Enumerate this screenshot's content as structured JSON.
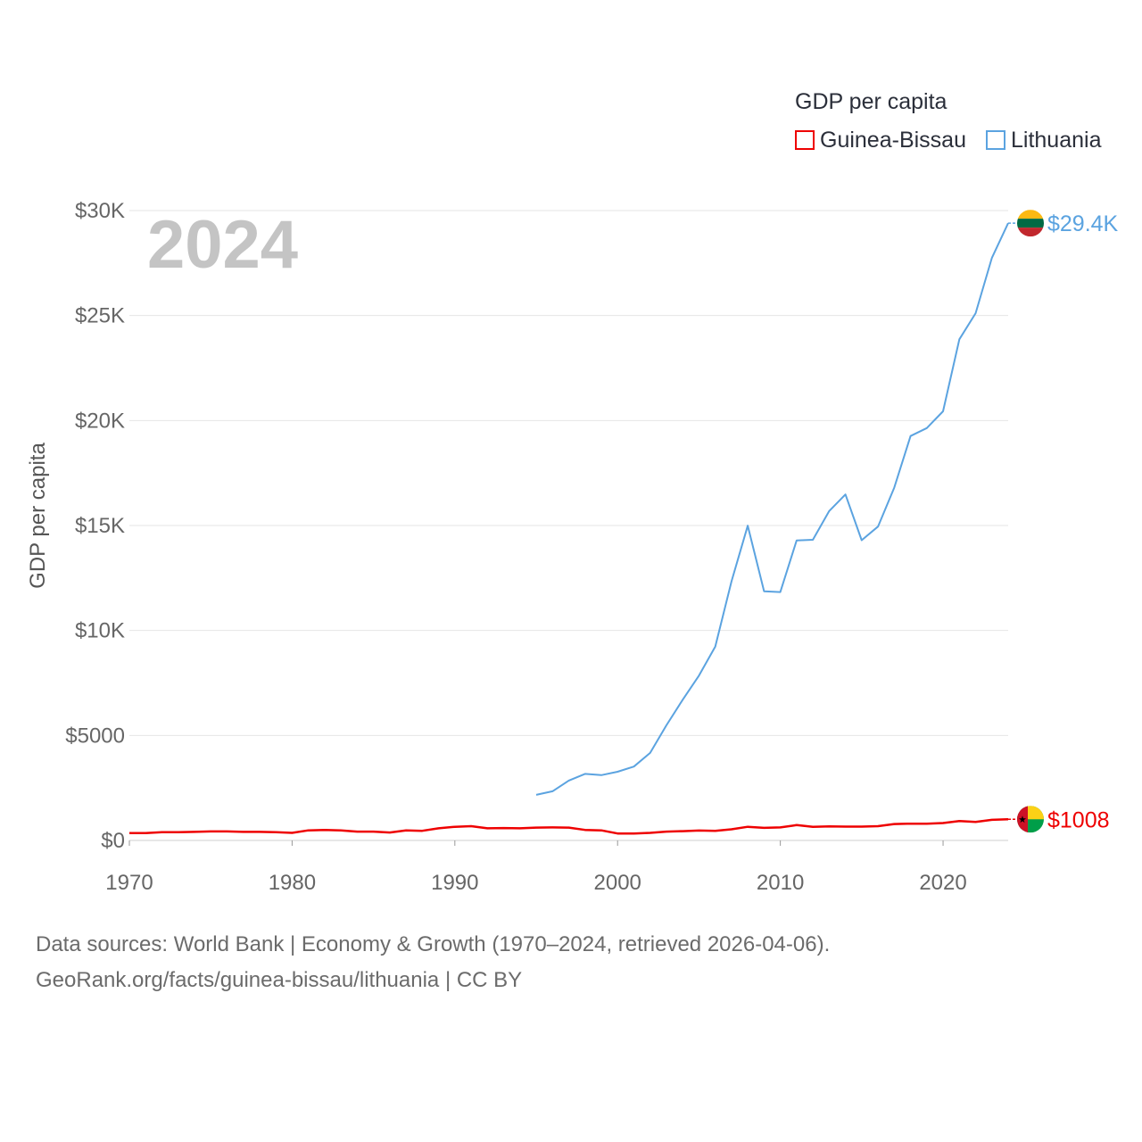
{
  "legend": {
    "title": "GDP per capita",
    "items": [
      {
        "label": "Guinea-Bissau",
        "color": "#ee0000"
      },
      {
        "label": "Lithuania",
        "color": "#5ba3e0"
      }
    ]
  },
  "source": {
    "line1": "Data sources: World Bank | Economy & Growth (1970–2024, retrieved 2026-04-06).",
    "line2": "GeoRank.org/facts/guinea-bissau/lithuania | CC BY"
  },
  "chart_data": {
    "type": "line",
    "title": "GDP per capita",
    "year_label": "2024",
    "ylabel": "GDP per capita",
    "xlabel": "",
    "xlim": [
      1970,
      2024
    ],
    "ylim": [
      0,
      30000
    ],
    "x_ticks": [
      1970,
      1980,
      1990,
      2000,
      2010,
      2020
    ],
    "x_tick_labels": [
      "1970",
      "1980",
      "1990",
      "2000",
      "2010",
      "2020"
    ],
    "y_ticks": [
      0,
      5000,
      10000,
      15000,
      20000,
      25000,
      30000
    ],
    "y_tick_labels": [
      "$0",
      "$5000",
      "$10K",
      "$15K",
      "$20K",
      "$25K",
      "$30K"
    ],
    "grid": true,
    "series": [
      {
        "name": "Guinea-Bissau",
        "color": "#ee0000",
        "end_label": "$1008",
        "flag_icon": "guinea-bissau-flag-icon",
        "x": [
          1970,
          1971,
          1972,
          1973,
          1974,
          1975,
          1976,
          1977,
          1978,
          1979,
          1980,
          1981,
          1982,
          1983,
          1984,
          1985,
          1986,
          1987,
          1988,
          1989,
          1990,
          1991,
          1992,
          1993,
          1994,
          1995,
          1996,
          1997,
          1998,
          1999,
          2000,
          2001,
          2002,
          2003,
          2004,
          2005,
          2006,
          2007,
          2008,
          2009,
          2010,
          2011,
          2012,
          2013,
          2014,
          2015,
          2016,
          2017,
          2018,
          2019,
          2020,
          2021,
          2022,
          2023,
          2024
        ],
        "values": [
          350,
          350,
          390,
          390,
          410,
          430,
          430,
          410,
          410,
          390,
          360,
          480,
          500,
          480,
          420,
          420,
          380,
          480,
          460,
          580,
          650,
          680,
          580,
          590,
          580,
          610,
          620,
          610,
          500,
          480,
          330,
          330,
          360,
          420,
          440,
          470,
          460,
          530,
          650,
          600,
          620,
          730,
          650,
          670,
          660,
          660,
          680,
          780,
          800,
          800,
          830,
          920,
          880,
          980,
          1008
        ]
      },
      {
        "name": "Lithuania",
        "color": "#5ba3e0",
        "end_label": "$29.4K",
        "flag_icon": "lithuania-flag-icon",
        "x": [
          1995,
          1996,
          1997,
          1998,
          1999,
          2000,
          2001,
          2002,
          2003,
          2004,
          2005,
          2006,
          2007,
          2008,
          2009,
          2010,
          2011,
          2012,
          2013,
          2014,
          2015,
          2016,
          2017,
          2018,
          2019,
          2020,
          2021,
          2022,
          2023,
          2024
        ],
        "values": [
          2170,
          2340,
          2850,
          3170,
          3110,
          3270,
          3520,
          4170,
          5480,
          6700,
          7850,
          9230,
          12340,
          14990,
          11870,
          11830,
          14290,
          14320,
          15690,
          16480,
          14300,
          14950,
          16800,
          19260,
          19640,
          20440,
          23870,
          25110,
          27750,
          29400
        ]
      }
    ]
  }
}
